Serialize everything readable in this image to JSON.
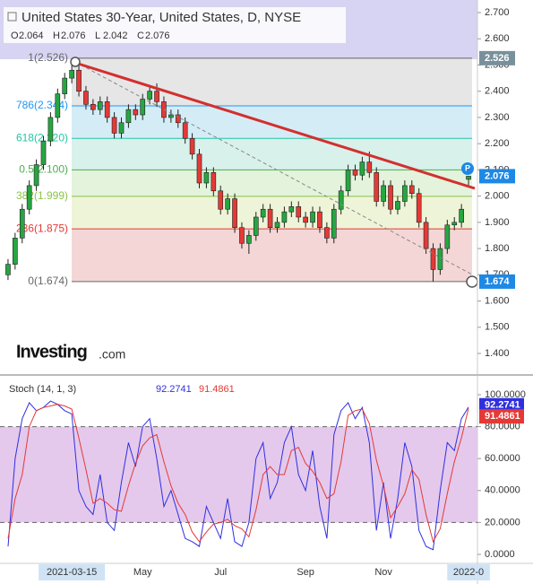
{
  "header": {
    "title": "United States 30-Year, United States, D, NYSE",
    "ohlc": [
      {
        "key": "O",
        "value": "2.064"
      },
      {
        "key": "H",
        "value": "2.076"
      },
      {
        "key": "L",
        "value": "2.042"
      },
      {
        "key": "C",
        "value": "2.076"
      }
    ],
    "watermark": "Investing",
    "watermark_suffix": ".com"
  },
  "chart_data": [
    {
      "type": "candlestick",
      "title": "United States 30-Year",
      "categories": [
        null,
        null,
        null,
        null,
        null,
        null,
        null,
        null,
        null,
        "2021-03-15",
        null,
        null,
        null,
        null,
        null,
        null,
        null,
        null,
        null,
        "May",
        null,
        null,
        null,
        null,
        null,
        null,
        null,
        null,
        null,
        null,
        "Jul",
        null,
        null,
        null,
        null,
        null,
        null,
        null,
        null,
        null,
        null,
        null,
        "Sep",
        null,
        null,
        null,
        null,
        null,
        null,
        null,
        null,
        null,
        null,
        "Nov",
        null,
        null,
        null,
        null,
        null,
        null,
        null,
        null,
        null,
        null,
        null,
        "2022-0"
      ],
      "open": [
        1.7,
        1.74,
        1.84,
        1.95,
        2.04,
        2.12,
        2.21,
        2.3,
        2.39,
        2.45,
        2.48,
        2.4,
        2.35,
        2.33,
        2.36,
        2.3,
        2.24,
        2.28,
        2.33,
        2.31,
        2.37,
        2.4,
        2.36,
        2.3,
        2.31,
        2.28,
        2.22,
        2.16,
        2.05,
        2.09,
        2.02,
        1.95,
        1.99,
        1.88,
        1.82,
        1.85,
        1.92,
        1.95,
        1.88,
        1.9,
        1.94,
        1.96,
        1.92,
        1.9,
        1.94,
        1.88,
        1.84,
        1.95,
        2.02,
        2.1,
        2.08,
        2.13,
        2.09,
        1.98,
        2.04,
        1.95,
        1.98,
        2.04,
        2.01,
        1.9,
        1.8,
        1.72,
        1.8,
        1.89,
        1.9,
        2.064
      ],
      "high": [
        1.76,
        1.86,
        1.97,
        2.06,
        2.14,
        2.23,
        2.32,
        2.41,
        2.47,
        2.526,
        2.5,
        2.42,
        2.37,
        2.38,
        2.38,
        2.32,
        2.3,
        2.35,
        2.35,
        2.39,
        2.42,
        2.43,
        2.38,
        2.33,
        2.33,
        2.3,
        2.24,
        2.18,
        2.11,
        2.11,
        2.04,
        2.01,
        2.01,
        1.9,
        1.87,
        1.94,
        1.97,
        1.97,
        1.92,
        1.96,
        1.98,
        1.98,
        1.94,
        1.96,
        1.96,
        1.9,
        1.97,
        2.04,
        2.12,
        2.12,
        2.15,
        2.17,
        2.11,
        2.06,
        2.06,
        2.0,
        2.06,
        2.06,
        2.03,
        1.92,
        1.82,
        1.82,
        1.91,
        1.92,
        1.97,
        2.076
      ],
      "low": [
        1.68,
        1.72,
        1.82,
        1.93,
        2.02,
        2.1,
        2.19,
        2.28,
        2.37,
        2.43,
        2.38,
        2.33,
        2.31,
        2.31,
        2.28,
        2.22,
        2.22,
        2.26,
        2.29,
        2.29,
        2.35,
        2.34,
        2.28,
        2.28,
        2.26,
        2.2,
        2.14,
        2.03,
        2.03,
        2.0,
        1.93,
        1.93,
        1.86,
        1.8,
        1.78,
        1.83,
        1.9,
        1.86,
        1.86,
        1.88,
        1.92,
        1.9,
        1.88,
        1.88,
        1.86,
        1.82,
        1.82,
        1.93,
        2.0,
        2.06,
        2.06,
        2.07,
        1.96,
        1.96,
        1.93,
        1.93,
        1.96,
        1.99,
        1.88,
        1.78,
        1.674,
        1.7,
        1.78,
        1.87,
        1.88,
        2.042
      ],
      "close": [
        1.74,
        1.84,
        1.95,
        2.04,
        2.12,
        2.21,
        2.3,
        2.39,
        2.45,
        2.48,
        2.4,
        2.35,
        2.33,
        2.36,
        2.3,
        2.24,
        2.28,
        2.33,
        2.31,
        2.37,
        2.4,
        2.36,
        2.3,
        2.31,
        2.28,
        2.22,
        2.16,
        2.05,
        2.09,
        2.02,
        1.95,
        1.99,
        1.88,
        1.82,
        1.85,
        1.92,
        1.95,
        1.88,
        1.9,
        1.94,
        1.96,
        1.92,
        1.9,
        1.94,
        1.88,
        1.84,
        1.95,
        2.02,
        2.1,
        2.08,
        2.13,
        2.09,
        1.98,
        2.04,
        1.95,
        1.98,
        2.04,
        2.01,
        1.9,
        1.8,
        1.72,
        1.8,
        1.89,
        1.9,
        1.95,
        2.076
      ],
      "up_color": "#26a641",
      "down_color": "#e53935",
      "ylim": [
        1.4,
        2.7
      ],
      "yticks": [
        {
          "value": 1.4,
          "label": "1.400"
        },
        {
          "value": 1.5,
          "label": "1.500"
        },
        {
          "value": 1.6,
          "label": "1.600"
        },
        {
          "value": 1.7,
          "label": "1.700"
        },
        {
          "value": 1.8,
          "label": "1.800"
        },
        {
          "value": 1.9,
          "label": "1.900"
        },
        {
          "value": 2.0,
          "label": "2.000"
        },
        {
          "value": 2.1,
          "label": "2.100"
        },
        {
          "value": 2.2,
          "label": "2.200"
        },
        {
          "value": 2.3,
          "label": "2.300"
        },
        {
          "value": 2.4,
          "label": "2.400"
        },
        {
          "value": 2.5,
          "label": "2.500"
        },
        {
          "value": 2.6,
          "label": "2.600"
        },
        {
          "value": 2.7,
          "label": "2.700"
        }
      ],
      "fib_levels": [
        {
          "value": 2.526,
          "label": "1(2.526)",
          "color": "#666666",
          "fill": "#e6e6e6"
        },
        {
          "value": 2.344,
          "label": "786(2.344)",
          "color": "#2196f3",
          "fill": "#d4ecf6"
        },
        {
          "value": 2.22,
          "label": "618(2.220)",
          "color": "#26c6a6",
          "fill": "#d8f1ea"
        },
        {
          "value": 2.1,
          "label": "0.5(2.100)",
          "color": "#4caf50",
          "fill": "#e3f3dc"
        },
        {
          "value": 1.999,
          "label": "382(1.999)",
          "color": "#8bc34a",
          "fill": "#eef4d8"
        },
        {
          "value": 1.875,
          "label": "236(1.875)",
          "color": "#e53935",
          "fill": "#f4d6d6"
        },
        {
          "value": 1.674,
          "label": "0(1.674)",
          "color": "#666666"
        }
      ],
      "price_badges": [
        {
          "value": 2.526,
          "label": "2.526",
          "color": "#78909c"
        },
        {
          "value": 2.076,
          "label": "2.076",
          "color": "#1e88e5"
        },
        {
          "value": 1.674,
          "label": "1.674",
          "color": "#1e88e5"
        }
      ]
    },
    {
      "type": "line",
      "title": "Stoch (14, 1, 3)",
      "series": [
        {
          "name": "%K",
          "color": "#2f2fe0",
          "values": [
            5,
            60,
            85,
            95,
            90,
            92,
            96,
            94,
            90,
            88,
            40,
            30,
            25,
            50,
            20,
            15,
            45,
            70,
            55,
            80,
            85,
            60,
            30,
            40,
            25,
            10,
            8,
            5,
            30,
            20,
            10,
            35,
            8,
            5,
            20,
            60,
            70,
            35,
            45,
            70,
            80,
            50,
            40,
            65,
            30,
            10,
            75,
            90,
            95,
            85,
            92,
            70,
            15,
            45,
            10,
            35,
            70,
            55,
            15,
            5,
            3,
            40,
            70,
            65,
            85,
            92.2741
          ]
        },
        {
          "name": "%D",
          "color": "#e53935",
          "values": [
            10,
            35,
            50,
            80,
            90,
            92,
            93,
            94,
            93,
            91,
            73,
            53,
            32,
            35,
            32,
            28,
            27,
            43,
            57,
            68,
            73,
            75,
            58,
            43,
            32,
            25,
            14,
            8,
            14,
            19,
            20,
            22,
            18,
            16,
            11,
            28,
            50,
            55,
            50,
            50,
            65,
            67,
            57,
            52,
            45,
            35,
            38,
            58,
            87,
            90,
            91,
            82,
            59,
            43,
            23,
            30,
            38,
            53,
            47,
            25,
            8,
            16,
            38,
            58,
            73,
            91.4861
          ]
        }
      ],
      "ylim": [
        0,
        100
      ],
      "yticks": [
        {
          "value": 0,
          "label": "0.0000"
        },
        {
          "value": 20,
          "label": "20.0000"
        },
        {
          "value": 40,
          "label": "40.0000"
        },
        {
          "value": 60,
          "label": "60.0000"
        },
        {
          "value": 80,
          "label": "80.0000"
        },
        {
          "value": 100,
          "label": "100.0000"
        }
      ],
      "band": [
        20,
        80
      ],
      "band_color": "#e4c9ec"
    }
  ]
}
